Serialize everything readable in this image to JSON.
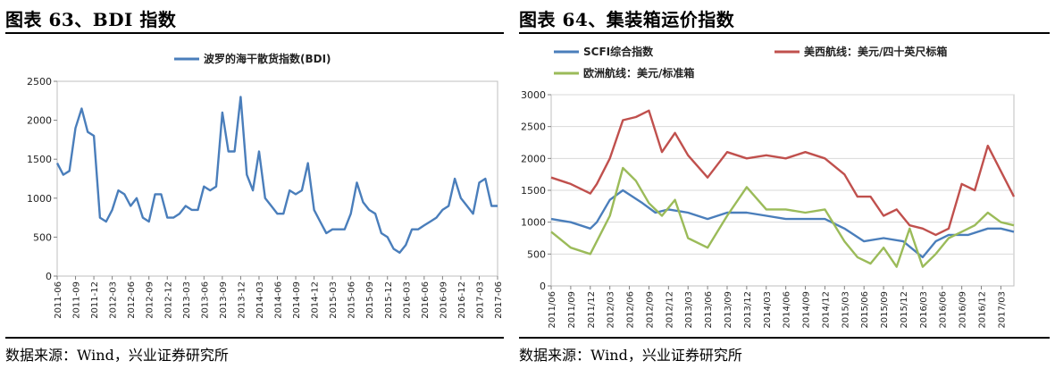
{
  "left": {
    "title": "图表 63、BDI 指数",
    "source": "数据来源：Wind，兴业证券研究所"
  },
  "right": {
    "title": "图表 64、集装箱运价指数",
    "source": "数据来源：Wind，兴业证券研究所"
  },
  "colors": {
    "blue": "#4a7ebb",
    "red": "#c0504d",
    "green": "#9bbb59"
  },
  "chart_data": [
    {
      "type": "line",
      "title": "",
      "legend_location": "top",
      "ylim": [
        0,
        2500
      ],
      "yticks": [
        0,
        500,
        1000,
        1500,
        2000,
        2500
      ],
      "xlim": [
        "2011-06",
        "2017-06"
      ],
      "xtick_labels": [
        "2011-06",
        "2011-09",
        "2011-12",
        "2012-03",
        "2012-06",
        "2012-09",
        "2012-12",
        "2013-03",
        "2013-06",
        "2013-09",
        "2013-12",
        "2014-03",
        "2014-06",
        "2014-09",
        "2014-12",
        "2015-03",
        "2015-06",
        "2015-09",
        "2015-12",
        "2016-03",
        "2016-06",
        "2016-09",
        "2016-12",
        "2017-03",
        "2017-06"
      ],
      "series": [
        {
          "name": "波罗的海干散货指数(BDI)",
          "color": "#4a7ebb",
          "points": [
            [
              "2011-06",
              1450
            ],
            [
              "2011-07",
              1300
            ],
            [
              "2011-08",
              1350
            ],
            [
              "2011-09",
              1900
            ],
            [
              "2011-10",
              2150
            ],
            [
              "2011-11",
              1850
            ],
            [
              "2011-12",
              1800
            ],
            [
              "2012-01",
              750
            ],
            [
              "2012-02",
              700
            ],
            [
              "2012-03",
              850
            ],
            [
              "2012-04",
              1100
            ],
            [
              "2012-05",
              1050
            ],
            [
              "2012-06",
              900
            ],
            [
              "2012-07",
              1000
            ],
            [
              "2012-08",
              750
            ],
            [
              "2012-09",
              700
            ],
            [
              "2012-10",
              1050
            ],
            [
              "2012-11",
              1050
            ],
            [
              "2012-12",
              750
            ],
            [
              "2013-01",
              750
            ],
            [
              "2013-02",
              800
            ],
            [
              "2013-03",
              900
            ],
            [
              "2013-04",
              850
            ],
            [
              "2013-05",
              850
            ],
            [
              "2013-06",
              1150
            ],
            [
              "2013-07",
              1100
            ],
            [
              "2013-08",
              1150
            ],
            [
              "2013-09",
              2100
            ],
            [
              "2013-10",
              1600
            ],
            [
              "2013-11",
              1600
            ],
            [
              "2013-12",
              2300
            ],
            [
              "2014-01",
              1300
            ],
            [
              "2014-02",
              1100
            ],
            [
              "2014-03",
              1600
            ],
            [
              "2014-04",
              1000
            ],
            [
              "2014-05",
              900
            ],
            [
              "2014-06",
              800
            ],
            [
              "2014-07",
              800
            ],
            [
              "2014-08",
              1100
            ],
            [
              "2014-09",
              1050
            ],
            [
              "2014-10",
              1100
            ],
            [
              "2014-11",
              1450
            ],
            [
              "2014-12",
              850
            ],
            [
              "2015-01",
              700
            ],
            [
              "2015-02",
              550
            ],
            [
              "2015-03",
              600
            ],
            [
              "2015-04",
              600
            ],
            [
              "2015-05",
              600
            ],
            [
              "2015-06",
              800
            ],
            [
              "2015-07",
              1200
            ],
            [
              "2015-08",
              950
            ],
            [
              "2015-09",
              850
            ],
            [
              "2015-10",
              800
            ],
            [
              "2015-11",
              550
            ],
            [
              "2015-12",
              500
            ],
            [
              "2016-01",
              350
            ],
            [
              "2016-02",
              300
            ],
            [
              "2016-03",
              400
            ],
            [
              "2016-04",
              600
            ],
            [
              "2016-05",
              600
            ],
            [
              "2016-06",
              650
            ],
            [
              "2016-07",
              700
            ],
            [
              "2016-08",
              750
            ],
            [
              "2016-09",
              850
            ],
            [
              "2016-10",
              900
            ],
            [
              "2016-11",
              1250
            ],
            [
              "2016-12",
              1000
            ],
            [
              "2017-01",
              900
            ],
            [
              "2017-02",
              800
            ],
            [
              "2017-03",
              1200
            ],
            [
              "2017-04",
              1250
            ],
            [
              "2017-05",
              900
            ],
            [
              "2017-06",
              900
            ]
          ]
        }
      ]
    },
    {
      "type": "line",
      "title": "",
      "legend_location": "top",
      "ylim": [
        0,
        3000
      ],
      "yticks": [
        0,
        500,
        1000,
        1500,
        2000,
        2500,
        3000
      ],
      "xlim": [
        "2011-06",
        "2017-05"
      ],
      "xtick_labels": [
        "2011/06",
        "2011/09",
        "2011/12",
        "2012/03",
        "2012/06",
        "2012/09",
        "2012/12",
        "2013/03",
        "2013/06",
        "2013/09",
        "2013/12",
        "2014/03",
        "2014/06",
        "2014/09",
        "2014/12",
        "2015/03",
        "2015/06",
        "2015/09",
        "2015/12",
        "2016/03",
        "2016/06",
        "2016/09",
        "2016/12",
        "2017/03"
      ],
      "series": [
        {
          "name": "SCFI综合指数",
          "color": "#4a7ebb",
          "points": [
            [
              "2011-06",
              1050
            ],
            [
              "2011-09",
              1000
            ],
            [
              "2011-12",
              900
            ],
            [
              "2012-01",
              1000
            ],
            [
              "2012-03",
              1350
            ],
            [
              "2012-05",
              1500
            ],
            [
              "2012-08",
              1300
            ],
            [
              "2012-10",
              1150
            ],
            [
              "2012-12",
              1200
            ],
            [
              "2013-03",
              1150
            ],
            [
              "2013-06",
              1050
            ],
            [
              "2013-09",
              1150
            ],
            [
              "2013-12",
              1150
            ],
            [
              "2014-03",
              1100
            ],
            [
              "2014-06",
              1050
            ],
            [
              "2014-09",
              1050
            ],
            [
              "2014-12",
              1050
            ],
            [
              "2015-03",
              900
            ],
            [
              "2015-06",
              700
            ],
            [
              "2015-09",
              750
            ],
            [
              "2015-12",
              700
            ],
            [
              "2016-03",
              450
            ],
            [
              "2016-05",
              700
            ],
            [
              "2016-07",
              800
            ],
            [
              "2016-10",
              800
            ],
            [
              "2017-01",
              900
            ],
            [
              "2017-03",
              900
            ],
            [
              "2017-05",
              850
            ]
          ]
        },
        {
          "name": "美西航线：美元/四十英尺标箱",
          "color": "#c0504d",
          "points": [
            [
              "2011-06",
              1700
            ],
            [
              "2011-09",
              1600
            ],
            [
              "2011-12",
              1450
            ],
            [
              "2012-01",
              1600
            ],
            [
              "2012-03",
              2000
            ],
            [
              "2012-05",
              2600
            ],
            [
              "2012-07",
              2650
            ],
            [
              "2012-09",
              2750
            ],
            [
              "2012-11",
              2100
            ],
            [
              "2013-01",
              2400
            ],
            [
              "2013-03",
              2050
            ],
            [
              "2013-06",
              1700
            ],
            [
              "2013-09",
              2100
            ],
            [
              "2013-12",
              2000
            ],
            [
              "2014-03",
              2050
            ],
            [
              "2014-06",
              2000
            ],
            [
              "2014-09",
              2100
            ],
            [
              "2014-12",
              2000
            ],
            [
              "2015-03",
              1750
            ],
            [
              "2015-05",
              1400
            ],
            [
              "2015-07",
              1400
            ],
            [
              "2015-09",
              1100
            ],
            [
              "2015-11",
              1200
            ],
            [
              "2016-01",
              950
            ],
            [
              "2016-03",
              900
            ],
            [
              "2016-05",
              800
            ],
            [
              "2016-07",
              900
            ],
            [
              "2016-09",
              1600
            ],
            [
              "2016-11",
              1500
            ],
            [
              "2017-01",
              2200
            ],
            [
              "2017-03",
              1800
            ],
            [
              "2017-05",
              1400
            ]
          ]
        },
        {
          "name": "欧洲航线：美元/标准箱",
          "color": "#9bbb59",
          "points": [
            [
              "2011-06",
              850
            ],
            [
              "2011-09",
              600
            ],
            [
              "2011-12",
              500
            ],
            [
              "2012-01",
              700
            ],
            [
              "2012-03",
              1100
            ],
            [
              "2012-05",
              1850
            ],
            [
              "2012-07",
              1650
            ],
            [
              "2012-09",
              1300
            ],
            [
              "2012-11",
              1100
            ],
            [
              "2013-01",
              1350
            ],
            [
              "2013-03",
              750
            ],
            [
              "2013-06",
              600
            ],
            [
              "2013-09",
              1100
            ],
            [
              "2013-12",
              1550
            ],
            [
              "2014-03",
              1200
            ],
            [
              "2014-06",
              1200
            ],
            [
              "2014-09",
              1150
            ],
            [
              "2014-12",
              1200
            ],
            [
              "2015-03",
              700
            ],
            [
              "2015-05",
              450
            ],
            [
              "2015-07",
              350
            ],
            [
              "2015-09",
              600
            ],
            [
              "2015-11",
              300
            ],
            [
              "2016-01",
              900
            ],
            [
              "2016-03",
              300
            ],
            [
              "2016-05",
              500
            ],
            [
              "2016-07",
              750
            ],
            [
              "2016-09",
              850
            ],
            [
              "2016-11",
              950
            ],
            [
              "2017-01",
              1150
            ],
            [
              "2017-03",
              1000
            ],
            [
              "2017-05",
              950
            ]
          ]
        }
      ]
    }
  ]
}
